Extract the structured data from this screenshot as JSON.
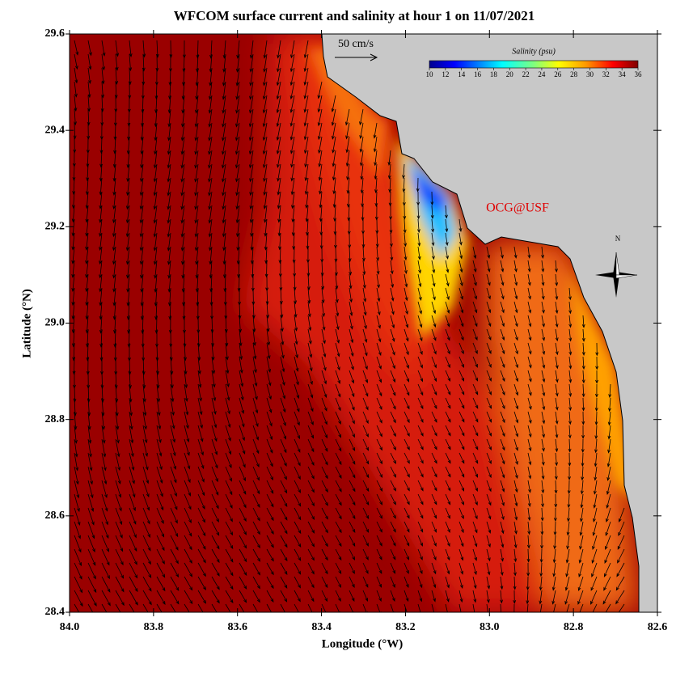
{
  "map": {
    "title": "WFCOM surface current and salinity at hour 1 on 11/07/2021",
    "x_axis": {
      "label": "Longitude (°W)",
      "lim": [
        84,
        82.6
      ],
      "ticks": [
        {
          "value": 84,
          "label": "84.0"
        },
        83.8,
        83.6,
        83.4,
        83.2,
        {
          "value": 83,
          "label": "83.0"
        },
        82.8,
        82.6
      ]
    },
    "y_axis": {
      "label": "Latitude (°N)",
      "lim": [
        28.4,
        29.6
      ],
      "ticks": [
        28.4,
        28.6,
        28.8,
        {
          "value": 29,
          "label": "29.0"
        },
        29.2,
        29.4,
        29.6
      ]
    },
    "scale_arrow_label": "50 cm/s",
    "colorbar": {
      "label": "Salinity (psu)",
      "lim": [
        10,
        36
      ],
      "ticks": [
        10,
        12,
        14,
        16,
        18,
        20,
        22,
        24,
        26,
        28,
        30,
        32,
        34,
        36
      ]
    },
    "credit": "OCG@USF",
    "compass_label": "N"
  }
}
